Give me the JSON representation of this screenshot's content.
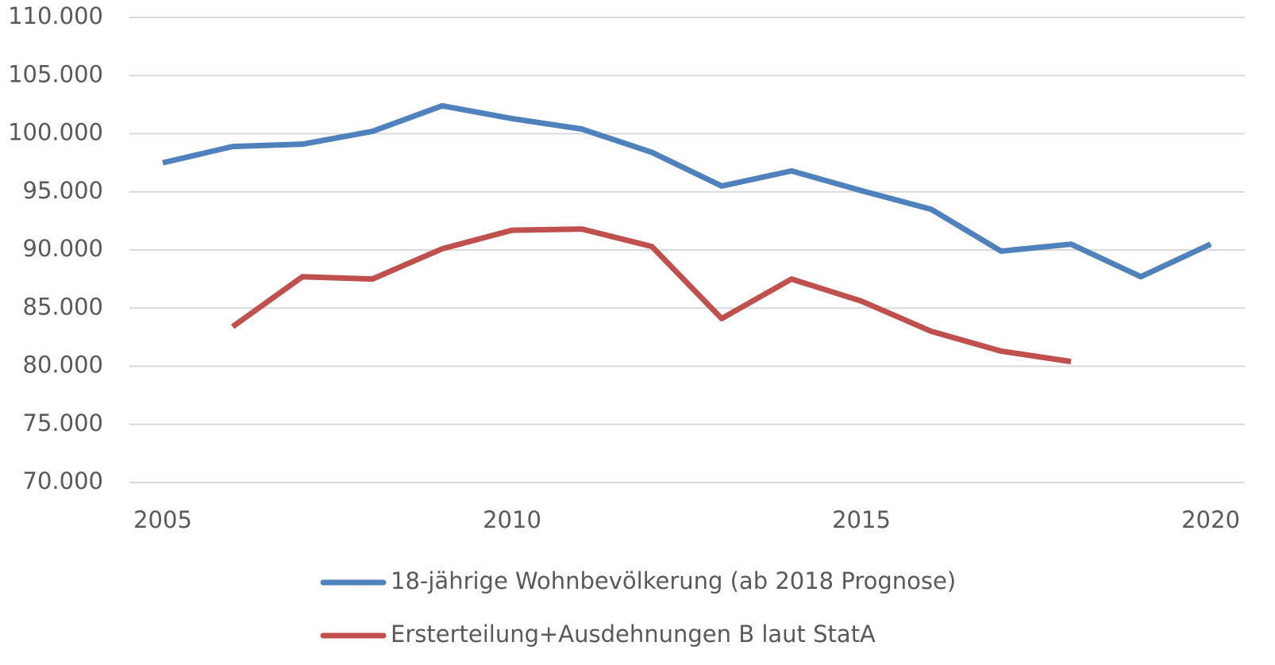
{
  "chart_data": {
    "type": "line",
    "x": [
      2005,
      2006,
      2007,
      2008,
      2009,
      2010,
      2011,
      2012,
      2013,
      2014,
      2015,
      2016,
      2017,
      2018,
      2019,
      2020
    ],
    "series": [
      {
        "name": "18-jährige Wohnbevölkerung (ab 2018 Prognose)",
        "color": "#4f81bd",
        "values": [
          97500,
          98900,
          99100,
          100200,
          102400,
          101300,
          100400,
          98400,
          95500,
          96800,
          95100,
          93500,
          89900,
          90500,
          87700,
          90500
        ]
      },
      {
        "name": "Ersterteilung+Ausdehnungen B laut StatA",
        "color": "#c0504d",
        "values": [
          null,
          83400,
          87700,
          87500,
          90100,
          91700,
          91800,
          90300,
          84100,
          87500,
          85600,
          83000,
          81300,
          80400,
          null,
          null
        ]
      }
    ],
    "xlim": [
      2005,
      2020
    ],
    "xticks": [
      2005,
      2010,
      2015,
      2020
    ],
    "ylim": [
      70000,
      110000
    ],
    "yticks": [
      {
        "value": 70000,
        "label": "70.000"
      },
      {
        "value": 75000,
        "label": "75.000"
      },
      {
        "value": 80000,
        "label": "80.000"
      },
      {
        "value": 85000,
        "label": "85.000"
      },
      {
        "value": 90000,
        "label": "90.000"
      },
      {
        "value": 95000,
        "label": "95.000"
      },
      {
        "value": 100000,
        "label": "100.000"
      },
      {
        "value": 105000,
        "label": "105.000"
      },
      {
        "value": 110000,
        "label": "110.000"
      }
    ],
    "grid": true,
    "legend": "bottom"
  }
}
